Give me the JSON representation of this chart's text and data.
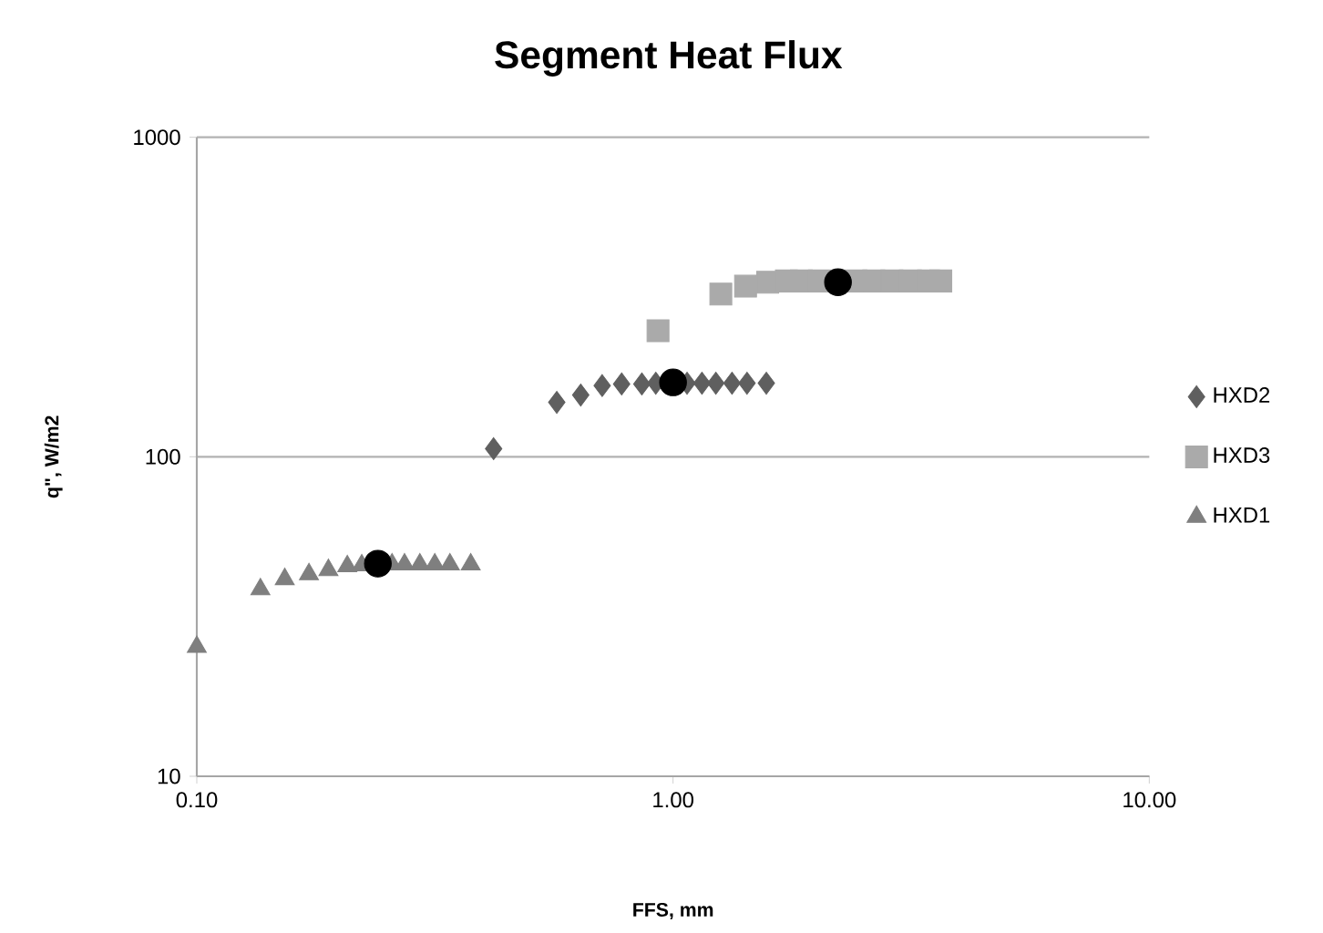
{
  "chart_data": {
    "type": "scatter",
    "title": "Segment Heat Flux",
    "xlabel": "FFS, mm",
    "ylabel": "q\", W/m2",
    "log": "xy",
    "grid": "y",
    "legend": "right",
    "xlim": [
      0.1,
      10
    ],
    "ylim": [
      10,
      1000
    ],
    "xticks": [
      {
        "value": 0.1,
        "label": "0.10"
      },
      {
        "value": 1,
        "label": "1.00"
      },
      {
        "value": 10,
        "label": "10.00"
      }
    ],
    "yticks": [
      10,
      100,
      1000
    ],
    "series": [
      {
        "name": "HXD2",
        "color": "#5f5f5f",
        "marker": "diamond",
        "x": [
          0.42,
          0.57,
          0.64,
          0.71,
          0.78,
          0.86,
          0.92,
          0.99,
          1.07,
          1.15,
          1.23,
          1.33,
          1.43,
          1.57
        ],
        "values": [
          106,
          148,
          156,
          167,
          169,
          169,
          170,
          null,
          170,
          170,
          170,
          170,
          170,
          170
        ]
      },
      {
        "name": "HXD3",
        "color": "#aaaaaa",
        "marker": "square",
        "x": [
          0.93,
          1.26,
          1.42,
          1.58,
          1.73,
          1.86,
          2.03,
          2.22,
          2.42,
          2.64,
          2.88,
          3.15,
          3.44,
          3.65
        ],
        "values": [
          248,
          323,
          342,
          352,
          355,
          355,
          355,
          null,
          355,
          355,
          355,
          355,
          355,
          355
        ]
      },
      {
        "name": "HXD1",
        "color": "#7f7f7f",
        "marker": "triangle",
        "x": [
          0.1,
          0.136,
          0.153,
          0.172,
          0.189,
          0.207,
          0.222,
          0.24,
          0.257,
          0.273,
          0.294,
          0.316,
          0.34,
          0.376
        ],
        "values": [
          25.4,
          38.5,
          41.4,
          42.9,
          44.2,
          45.4,
          45.7,
          null,
          46,
          46,
          46,
          46,
          46,
          46
        ]
      },
      {
        "color": "#000000",
        "marker": "circle",
        "x": [
          0.24,
          1.0,
          2.22
        ],
        "values": [
          46.3,
          171,
          352
        ]
      }
    ]
  }
}
